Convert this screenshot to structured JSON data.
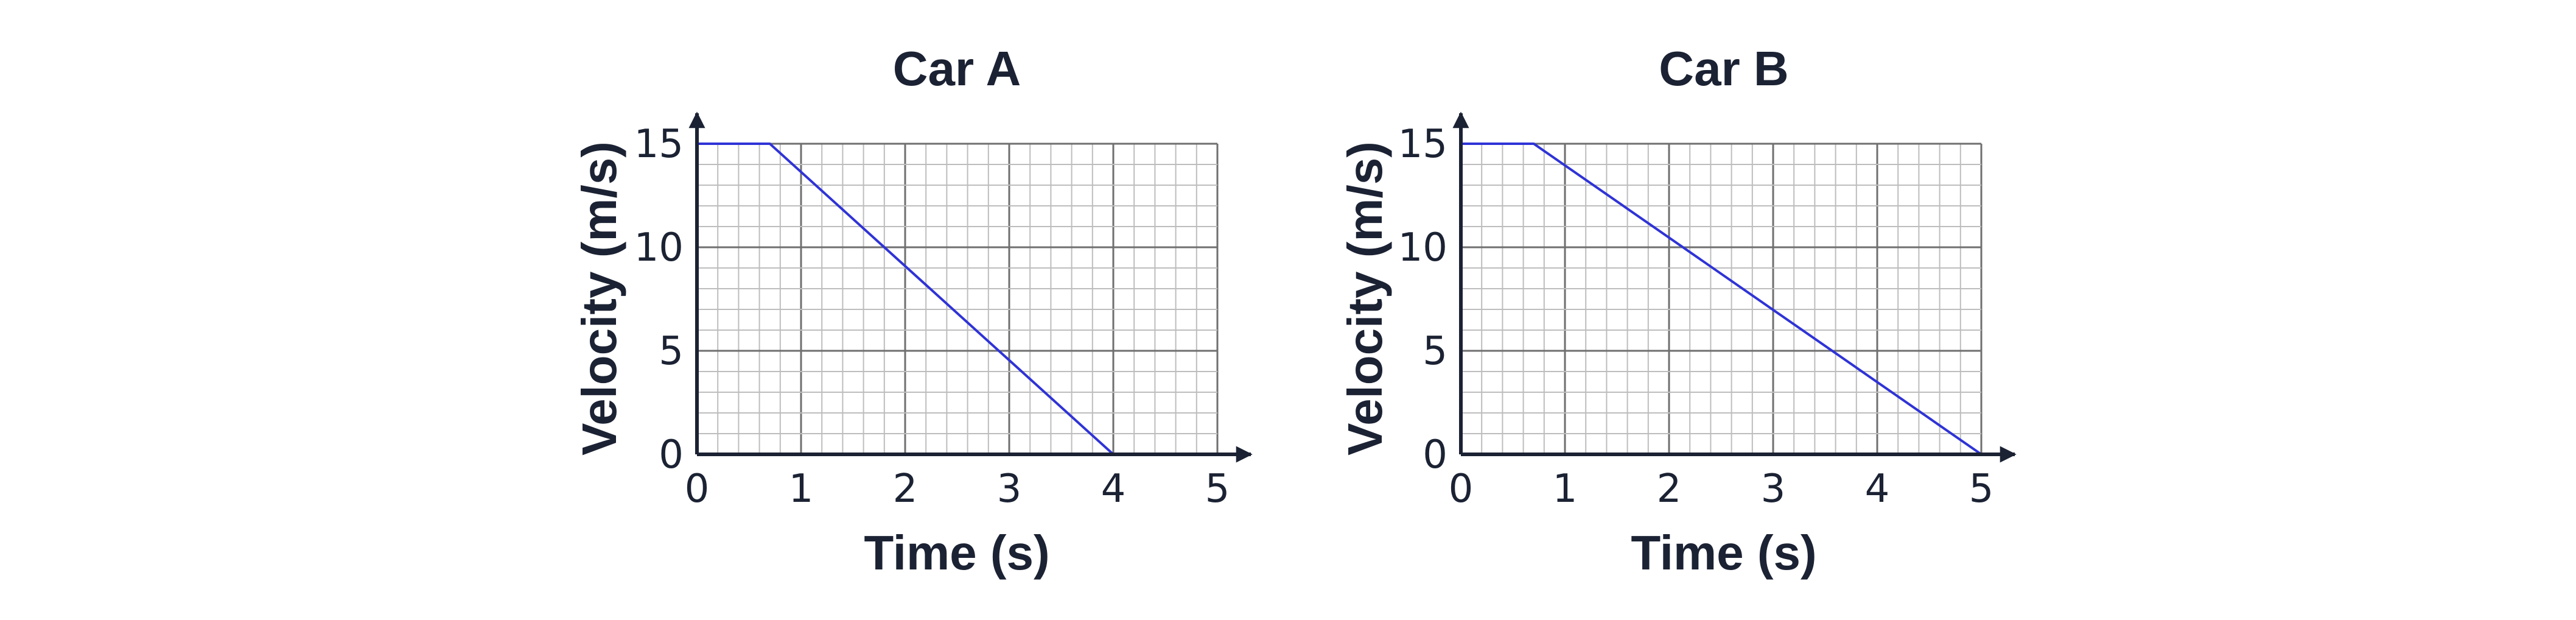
{
  "chart_data": [
    {
      "type": "line",
      "title": "Car A",
      "xlabel": "Time (s)",
      "ylabel": "Velocity (m/s)",
      "xlim": [
        0,
        5
      ],
      "ylim": [
        0,
        15
      ],
      "xticks": [
        "0",
        "1",
        "2",
        "3",
        "4",
        "5"
      ],
      "yticks": [
        "0",
        "5",
        "10",
        "15"
      ],
      "grid": true,
      "series": [
        {
          "color": "#2f33d6",
          "x": [
            0,
            0.7,
            4
          ],
          "y": [
            15,
            15,
            0
          ]
        }
      ]
    },
    {
      "type": "line",
      "title": "Car B",
      "xlabel": "Time (s)",
      "ylabel": "Velocity (m/s)",
      "xlim": [
        0,
        5
      ],
      "ylim": [
        0,
        15
      ],
      "xticks": [
        "0",
        "1",
        "2",
        "3",
        "4",
        "5"
      ],
      "yticks": [
        "0",
        "5",
        "10",
        "15"
      ],
      "grid": true,
      "series": [
        {
          "color": "#2f33d6",
          "x": [
            0,
            0.7,
            5
          ],
          "y": [
            15,
            15,
            0
          ]
        }
      ]
    }
  ]
}
